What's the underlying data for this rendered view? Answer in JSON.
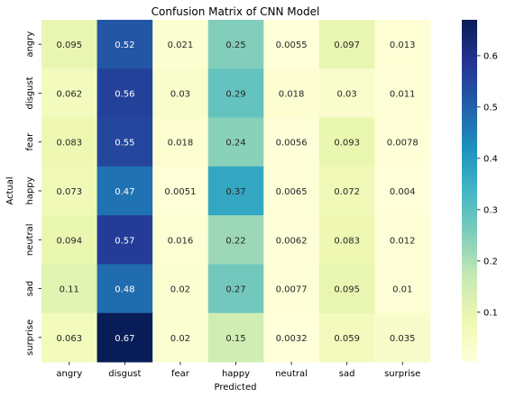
{
  "chart_data": {
    "type": "heatmap",
    "title": "Confusion Matrix of CNN Model",
    "xlabel": "Predicted",
    "ylabel": "Actual",
    "x_categories": [
      "angry",
      "disgust",
      "fear",
      "happy",
      "neutral",
      "sad",
      "surprise"
    ],
    "y_categories": [
      "angry",
      "disgust",
      "fear",
      "happy",
      "neutral",
      "sad",
      "surprise"
    ],
    "values": [
      [
        "0.095",
        "0.52",
        "0.021",
        "0.25",
        "0.0055",
        "0.097",
        "0.013"
      ],
      [
        "0.062",
        "0.56",
        "0.03",
        "0.29",
        "0.018",
        "0.03",
        "0.011"
      ],
      [
        "0.083",
        "0.55",
        "0.018",
        "0.24",
        "0.0056",
        "0.093",
        "0.0078"
      ],
      [
        "0.073",
        "0.47",
        "0.0051",
        "0.37",
        "0.0065",
        "0.072",
        "0.004"
      ],
      [
        "0.094",
        "0.57",
        "0.016",
        "0.22",
        "0.0062",
        "0.083",
        "0.012"
      ],
      [
        "0.11",
        "0.48",
        "0.02",
        "0.27",
        "0.0077",
        "0.095",
        "0.01"
      ],
      [
        "0.063",
        "0.67",
        "0.02",
        "0.15",
        "0.0032",
        "0.059",
        "0.035"
      ]
    ],
    "colormap": "YlGnBu",
    "colorbar": {
      "range": [
        0.0032,
        0.67
      ],
      "ticks": [
        "0.1",
        "0.2",
        "0.3",
        "0.4",
        "0.5",
        "0.6"
      ]
    }
  }
}
